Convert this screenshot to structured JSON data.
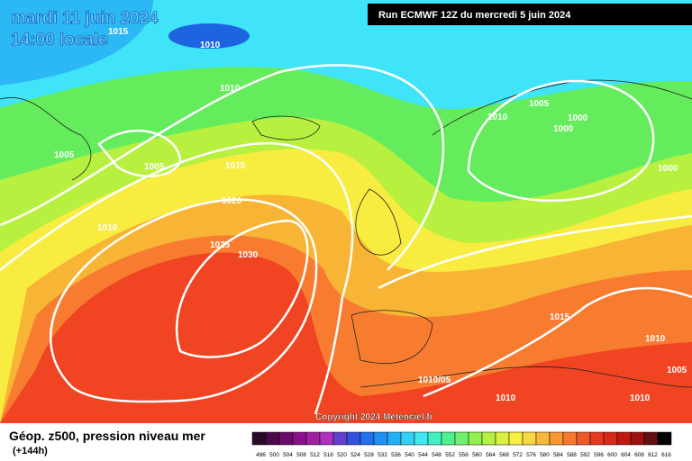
{
  "header": {
    "date": "mardi 11 juin 2024",
    "time": "14:00 locale",
    "run": "Run ECMWF 12Z du mercredi 5 juin 2024"
  },
  "isobar_labels": [
    "1015",
    "1010",
    "1010",
    "1005",
    "1005",
    "1015",
    "1020",
    "1010",
    "1025",
    "1030",
    "1010",
    "1005",
    "1000",
    "1000",
    "1000",
    "1015",
    "1010",
    "1005",
    "1010/05",
    "1010",
    "1010"
  ],
  "footer": {
    "copyright": "Copyright 2024 Meteociel.fr",
    "title": "Géop. z500, pression niveau mer",
    "lead": "(+144h)"
  },
  "scale": [
    496,
    500,
    504,
    508,
    512,
    516,
    520,
    524,
    528,
    532,
    536,
    540,
    544,
    548,
    552,
    556,
    560,
    564,
    568,
    572,
    576,
    580,
    584,
    588,
    592,
    596,
    600,
    604,
    608,
    612,
    616
  ]
}
